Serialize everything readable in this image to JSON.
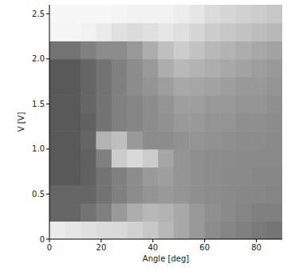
{
  "chart_data": {
    "type": "heatmap",
    "x_label": "Angle [deg]",
    "y_label": "V [V]",
    "xlim": [
      0,
      90
    ],
    "ylim": [
      0,
      2.6
    ],
    "xticks": [
      0,
      20,
      40,
      60,
      80
    ],
    "yticks": [
      0,
      0.5,
      {
        "value": 1,
        "label": "1.0"
      },
      1.5,
      {
        "value": 2,
        "label": "2.0"
      },
      2.5
    ],
    "grid": false,
    "x": [
      3,
      9,
      15,
      21,
      27,
      33,
      39,
      45,
      51,
      57,
      63,
      69,
      75,
      81,
      87
    ],
    "y": [
      0.1,
      0.3,
      0.5,
      0.7,
      0.9,
      1.1,
      1.3,
      1.5,
      1.7,
      1.9,
      2.1,
      2.3,
      2.5
    ],
    "values": [
      [
        0.92,
        0.9,
        0.88,
        0.86,
        0.85,
        0.82,
        0.78,
        0.72,
        0.66,
        0.6,
        0.55,
        0.52,
        0.5,
        0.48,
        0.46
      ],
      [
        0.4,
        0.4,
        0.45,
        0.5,
        0.6,
        0.68,
        0.72,
        0.7,
        0.66,
        0.6,
        0.56,
        0.54,
        0.52,
        0.5,
        0.5
      ],
      [
        0.4,
        0.4,
        0.4,
        0.45,
        0.5,
        0.55,
        0.58,
        0.6,
        0.58,
        0.56,
        0.55,
        0.54,
        0.53,
        0.53,
        0.52
      ],
      [
        0.35,
        0.35,
        0.38,
        0.45,
        0.5,
        0.55,
        0.6,
        0.62,
        0.58,
        0.56,
        0.55,
        0.54,
        0.54,
        0.53,
        0.53
      ],
      [
        0.35,
        0.35,
        0.38,
        0.5,
        0.8,
        0.85,
        0.8,
        0.65,
        0.58,
        0.56,
        0.55,
        0.55,
        0.54,
        0.54,
        0.54
      ],
      [
        0.35,
        0.35,
        0.4,
        0.7,
        0.75,
        0.6,
        0.55,
        0.55,
        0.57,
        0.58,
        0.57,
        0.56,
        0.55,
        0.55,
        0.54
      ],
      [
        0.35,
        0.35,
        0.38,
        0.45,
        0.5,
        0.52,
        0.55,
        0.57,
        0.6,
        0.6,
        0.58,
        0.58,
        0.56,
        0.56,
        0.55
      ],
      [
        0.35,
        0.35,
        0.4,
        0.45,
        0.5,
        0.52,
        0.55,
        0.58,
        0.62,
        0.62,
        0.6,
        0.6,
        0.58,
        0.58,
        0.56
      ],
      [
        0.35,
        0.35,
        0.4,
        0.45,
        0.5,
        0.55,
        0.58,
        0.62,
        0.66,
        0.65,
        0.64,
        0.62,
        0.6,
        0.6,
        0.58
      ],
      [
        0.35,
        0.35,
        0.4,
        0.45,
        0.5,
        0.55,
        0.6,
        0.68,
        0.72,
        0.7,
        0.68,
        0.66,
        0.64,
        0.62,
        0.6
      ],
      [
        0.45,
        0.45,
        0.5,
        0.55,
        0.55,
        0.6,
        0.68,
        0.75,
        0.8,
        0.76,
        0.72,
        0.7,
        0.68,
        0.66,
        0.64
      ],
      [
        0.96,
        0.96,
        0.95,
        0.92,
        0.88,
        0.86,
        0.88,
        0.9,
        0.88,
        0.84,
        0.8,
        0.78,
        0.76,
        0.74,
        0.72
      ],
      [
        0.97,
        0.97,
        0.97,
        0.97,
        0.96,
        0.95,
        0.95,
        0.95,
        0.93,
        0.9,
        0.86,
        0.84,
        0.82,
        0.8,
        0.78
      ]
    ]
  }
}
